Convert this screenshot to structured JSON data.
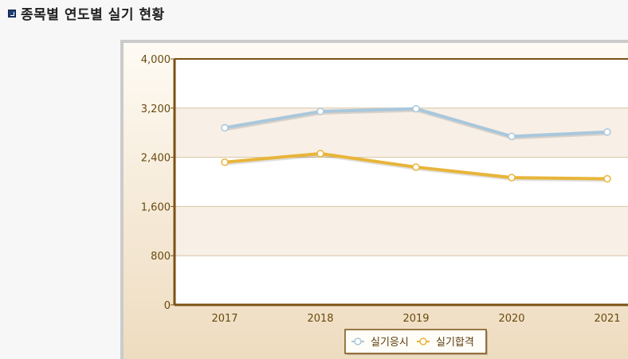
{
  "page": {
    "title": "종목별 연도별 실기 현황"
  },
  "icons": {
    "title_bullet": "square-bullet-icon"
  },
  "colors": {
    "axis": "#7a5214",
    "grid": "#d7c4a5",
    "band": "#f8efe6",
    "series_a": "#a9c7dc",
    "series_b": "#e8b53a"
  },
  "chart_data": {
    "type": "line",
    "title": "",
    "xlabel": "",
    "ylabel": "",
    "categories": [
      "2017",
      "2018",
      "2019",
      "2020",
      "2021"
    ],
    "ylim": [
      0,
      4000
    ],
    "yticks": [
      0,
      800,
      1600,
      2400,
      3200,
      4000
    ],
    "ytick_labels": [
      "0",
      "800",
      "1,600",
      "2,400",
      "3,200",
      "4,000"
    ],
    "series": [
      {
        "name": "실기응시",
        "values": [
          2880,
          3145,
          3190,
          2740,
          2810
        ]
      },
      {
        "name": "실기합격",
        "values": [
          2320,
          2460,
          2240,
          2070,
          2050
        ]
      }
    ],
    "grid": true,
    "legend": "bottom-center"
  }
}
